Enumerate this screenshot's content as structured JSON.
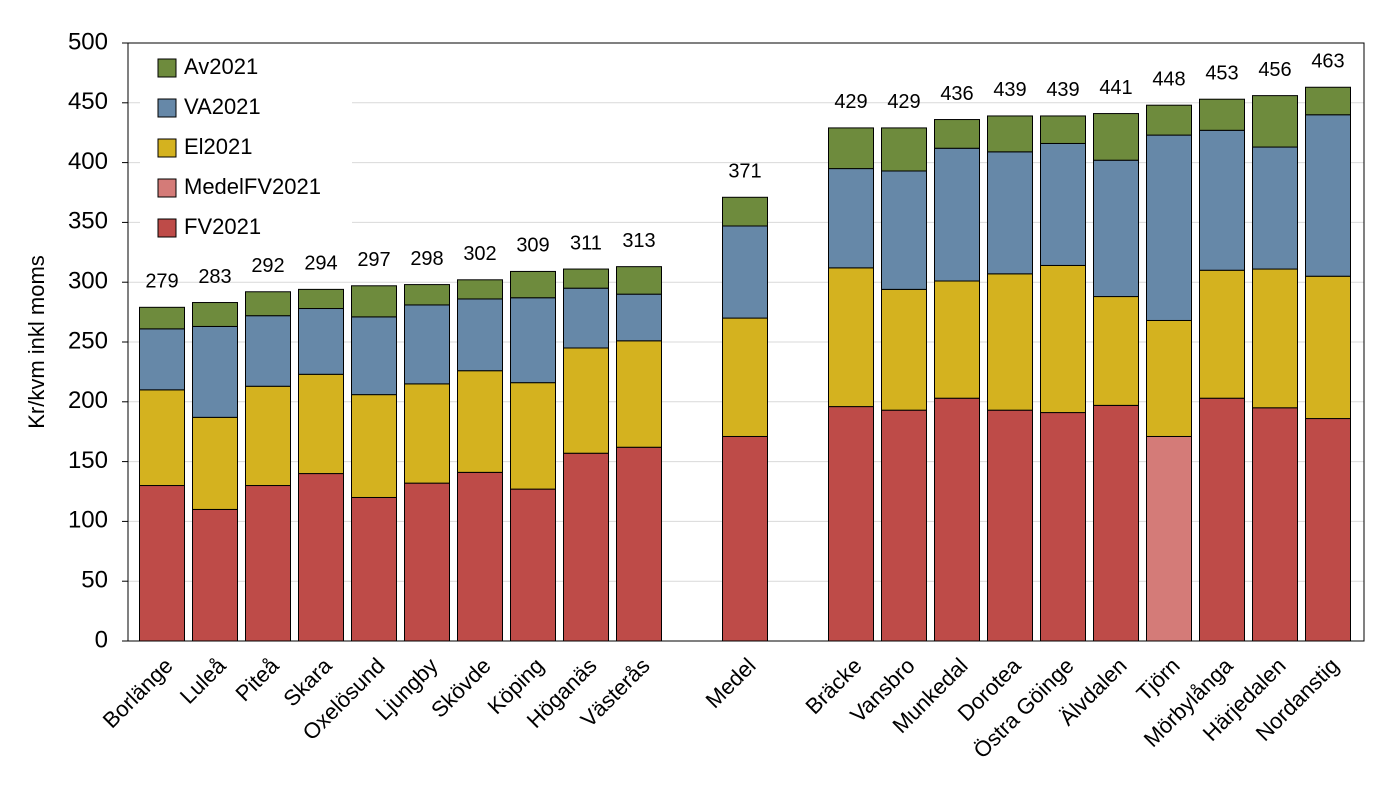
{
  "chart_data": {
    "type": "stacked-bar",
    "y_label": "Kr/kvm inkl moms",
    "categories": [
      "Borlänge",
      "Luleå",
      "Piteå",
      "Skara",
      "Oxelösund",
      "Ljungby",
      "Skövde",
      "Köping",
      "Höganäs",
      "Västerås",
      null,
      "Medel",
      null,
      "Bräcke",
      "Vansbro",
      "Munkedal",
      "Dorotea",
      "Östra Göinge",
      "Älvdalen",
      "Tjörn",
      "Mörbylånga",
      "Härjedalen",
      "Nordanstig"
    ],
    "series": [
      {
        "name": "FV2021",
        "color": "#be4b48",
        "values": [
          130,
          110,
          130,
          140,
          120,
          132,
          141,
          127,
          157,
          162,
          null,
          171,
          null,
          196,
          193,
          203,
          193,
          191,
          197,
          null,
          203,
          195,
          186
        ]
      },
      {
        "name": "MedelFV2021",
        "color": "#d47b78",
        "values": [
          null,
          null,
          null,
          null,
          null,
          null,
          null,
          null,
          null,
          null,
          null,
          null,
          null,
          null,
          null,
          null,
          null,
          null,
          null,
          171,
          null,
          null,
          null
        ]
      },
      {
        "name": "El2021",
        "color": "#d4b21f",
        "values": [
          80,
          77,
          83,
          83,
          86,
          83,
          85,
          89,
          88,
          89,
          null,
          99,
          null,
          116,
          101,
          98,
          114,
          123,
          91,
          97,
          107,
          116,
          119
        ]
      },
      {
        "name": "VA2021",
        "color": "#6688a8",
        "values": [
          51,
          76,
          59,
          55,
          65,
          66,
          60,
          71,
          50,
          39,
          null,
          77,
          null,
          83,
          99,
          111,
          102,
          102,
          114,
          155,
          117,
          102,
          135
        ]
      },
      {
        "name": "Av2021",
        "color": "#6e8b3d",
        "values": [
          18,
          20,
          20,
          16,
          26,
          17,
          16,
          22,
          16,
          23,
          null,
          24,
          null,
          34,
          36,
          24,
          30,
          23,
          39,
          25,
          26,
          43,
          23
        ]
      }
    ],
    "totals": [
      279,
      283,
      292,
      294,
      297,
      298,
      302,
      309,
      311,
      313,
      null,
      371,
      null,
      429,
      429,
      436,
      439,
      439,
      441,
      448,
      453,
      456,
      463
    ],
    "ylim": [
      0,
      500
    ],
    "yticks": [
      0,
      50,
      100,
      150,
      200,
      250,
      300,
      350,
      400,
      450,
      500
    ],
    "grid": true,
    "legend": "upper-left"
  }
}
